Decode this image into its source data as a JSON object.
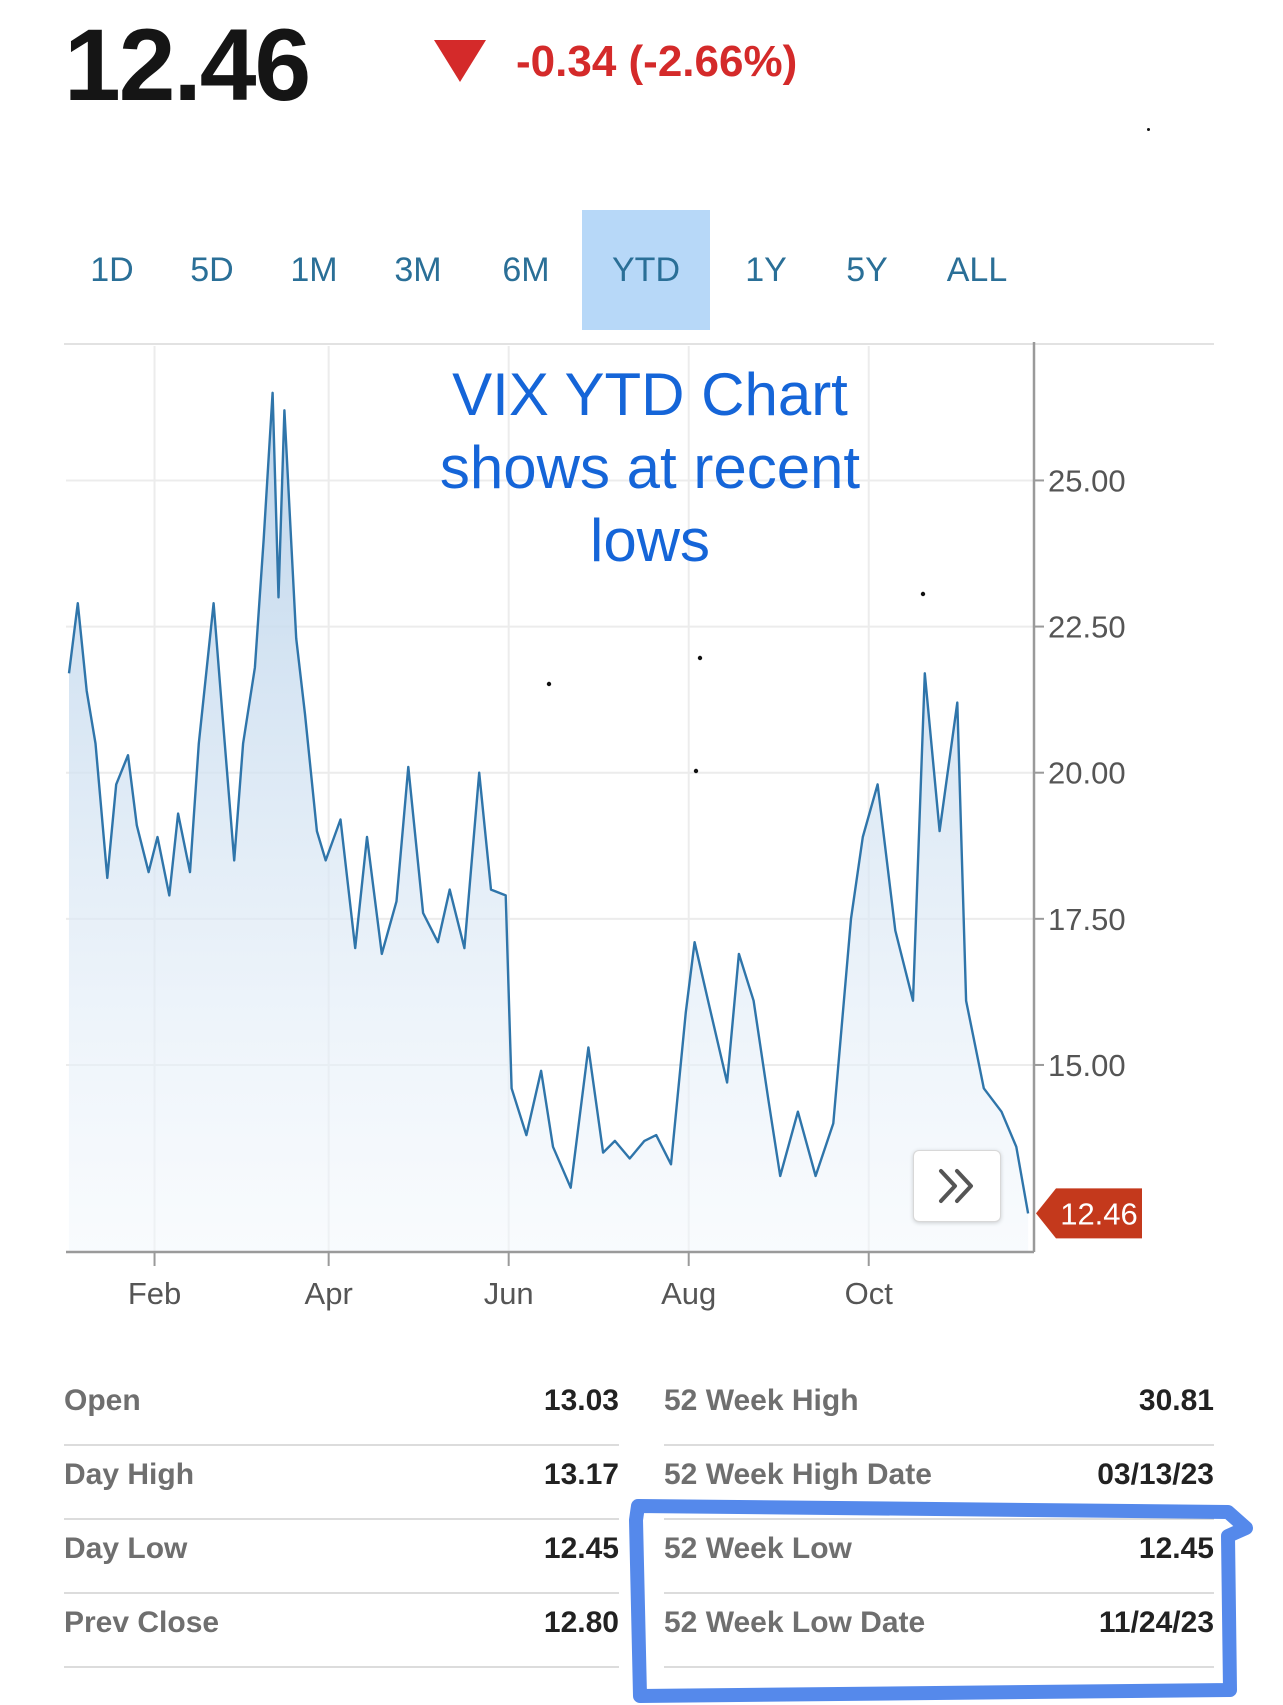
{
  "quote": {
    "price": "12.46",
    "change": "-0.34 (-2.66%)",
    "direction_icon": "triangle-down-icon",
    "up_down_color": "#d42a2a"
  },
  "tabs": [
    {
      "label": "1D"
    },
    {
      "label": "5D"
    },
    {
      "label": "1M"
    },
    {
      "label": "3M"
    },
    {
      "label": "6M"
    },
    {
      "label": "YTD",
      "active": true
    },
    {
      "label": "1Y"
    },
    {
      "label": "5Y"
    },
    {
      "label": "ALL"
    }
  ],
  "annotation": {
    "lines": [
      "VIX YTD Chart",
      "shows at recent",
      "lows"
    ],
    "color": "#1565d8"
  },
  "expand_icon": "double-chevron-right-icon",
  "chart_data": {
    "type": "area",
    "title": "",
    "xlabel": "",
    "ylabel": "",
    "x_ticks": [
      "Feb",
      "Apr",
      "Jun",
      "Aug",
      "Oct"
    ],
    "y_ticks": [
      "15.00",
      "17.50",
      "20.00",
      "22.50",
      "25.00"
    ],
    "ylim": [
      11.8,
      27.3
    ],
    "y_axis_position": "right",
    "grid": true,
    "line_color": "#2f75aa",
    "last_value_label": "12.46",
    "last_value_color": "#c4391c",
    "x": [
      "2023-01-03",
      "2023-01-06",
      "2023-01-09",
      "2023-01-12",
      "2023-01-16",
      "2023-01-19",
      "2023-01-23",
      "2023-01-26",
      "2023-01-30",
      "2023-02-02",
      "2023-02-06",
      "2023-02-09",
      "2023-02-13",
      "2023-02-16",
      "2023-02-21",
      "2023-02-24",
      "2023-02-28",
      "2023-03-03",
      "2023-03-07",
      "2023-03-10",
      "2023-03-13",
      "2023-03-15",
      "2023-03-17",
      "2023-03-21",
      "2023-03-24",
      "2023-03-28",
      "2023-03-31",
      "2023-04-05",
      "2023-04-10",
      "2023-04-14",
      "2023-04-19",
      "2023-04-24",
      "2023-04-28",
      "2023-05-03",
      "2023-05-08",
      "2023-05-12",
      "2023-05-17",
      "2023-05-22",
      "2023-05-26",
      "2023-05-31",
      "2023-06-02",
      "2023-06-07",
      "2023-06-12",
      "2023-06-16",
      "2023-06-22",
      "2023-06-28",
      "2023-07-03",
      "2023-07-07",
      "2023-07-12",
      "2023-07-17",
      "2023-07-21",
      "2023-07-26",
      "2023-07-31",
      "2023-08-03",
      "2023-08-08",
      "2023-08-14",
      "2023-08-18",
      "2023-08-23",
      "2023-08-28",
      "2023-09-01",
      "2023-09-07",
      "2023-09-13",
      "2023-09-19",
      "2023-09-25",
      "2023-09-29",
      "2023-10-04",
      "2023-10-10",
      "2023-10-16",
      "2023-10-20",
      "2023-10-25",
      "2023-10-31",
      "2023-11-03",
      "2023-11-09",
      "2023-11-15",
      "2023-11-20",
      "2023-11-24"
    ],
    "values": [
      21.7,
      22.9,
      21.4,
      20.5,
      18.2,
      19.8,
      20.3,
      19.1,
      18.3,
      18.9,
      17.9,
      19.3,
      18.3,
      20.5,
      22.9,
      21.0,
      18.5,
      20.5,
      21.8,
      24.0,
      26.5,
      23.0,
      26.2,
      22.3,
      21.0,
      19.0,
      18.5,
      19.2,
      17.0,
      18.9,
      16.9,
      17.8,
      20.1,
      17.6,
      17.1,
      18.0,
      17.0,
      20.0,
      18.0,
      17.9,
      14.6,
      13.8,
      14.9,
      13.6,
      12.9,
      15.3,
      13.5,
      13.7,
      13.4,
      13.7,
      13.8,
      13.3,
      15.9,
      17.1,
      16.0,
      14.7,
      16.9,
      16.1,
      14.4,
      13.1,
      14.2,
      13.1,
      14.0,
      17.5,
      18.9,
      19.8,
      17.3,
      16.1,
      21.7,
      19.0,
      21.2,
      16.1,
      14.6,
      14.2,
      13.6,
      12.46
    ]
  },
  "stats": {
    "left": [
      {
        "label": "Open",
        "value": "13.03"
      },
      {
        "label": "Day High",
        "value": "13.17"
      },
      {
        "label": "Day Low",
        "value": "12.45"
      },
      {
        "label": "Prev Close",
        "value": "12.80"
      }
    ],
    "right": [
      {
        "label": "52 Week High",
        "value": "30.81"
      },
      {
        "label": "52 Week High Date",
        "value": "03/13/23"
      },
      {
        "label": "52 Week Low",
        "value": "12.45"
      },
      {
        "label": "52 Week Low Date",
        "value": "11/24/23"
      }
    ]
  },
  "highlight_color": "#2a6be6"
}
